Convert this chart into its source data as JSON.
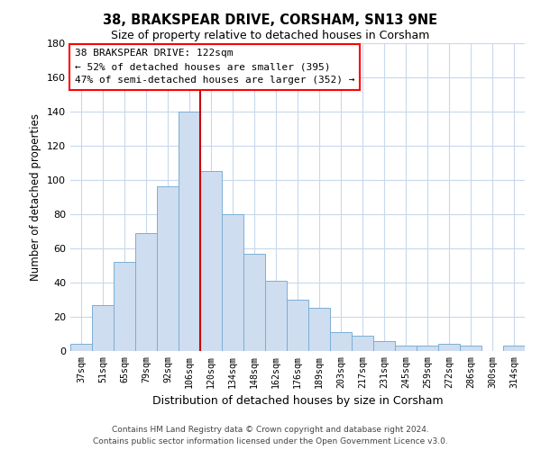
{
  "title": "38, BRAKSPEAR DRIVE, CORSHAM, SN13 9NE",
  "subtitle": "Size of property relative to detached houses in Corsham",
  "xlabel": "Distribution of detached houses by size in Corsham",
  "ylabel": "Number of detached properties",
  "bar_labels": [
    "37sqm",
    "51sqm",
    "65sqm",
    "79sqm",
    "92sqm",
    "106sqm",
    "120sqm",
    "134sqm",
    "148sqm",
    "162sqm",
    "176sqm",
    "189sqm",
    "203sqm",
    "217sqm",
    "231sqm",
    "245sqm",
    "259sqm",
    "272sqm",
    "286sqm",
    "300sqm",
    "314sqm"
  ],
  "bar_values": [
    4,
    27,
    52,
    69,
    96,
    140,
    105,
    80,
    57,
    41,
    30,
    25,
    11,
    9,
    6,
    3,
    3,
    4,
    3,
    0,
    3
  ],
  "bar_color": "#cfddf0",
  "bar_edge_color": "#7aafd4",
  "vline_color": "#cc0000",
  "vline_pos": 5.5,
  "ylim": [
    0,
    180
  ],
  "yticks": [
    0,
    20,
    40,
    60,
    80,
    100,
    120,
    140,
    160,
    180
  ],
  "annotation_line1": "38 BRAKSPEAR DRIVE: 122sqm",
  "annotation_line2": "← 52% of detached houses are smaller (395)",
  "annotation_line3": "47% of semi-detached houses are larger (352) →",
  "footer_line1": "Contains HM Land Registry data © Crown copyright and database right 2024.",
  "footer_line2": "Contains public sector information licensed under the Open Government Licence v3.0.",
  "bg_color": "#ffffff",
  "grid_color": "#c8d8ec"
}
